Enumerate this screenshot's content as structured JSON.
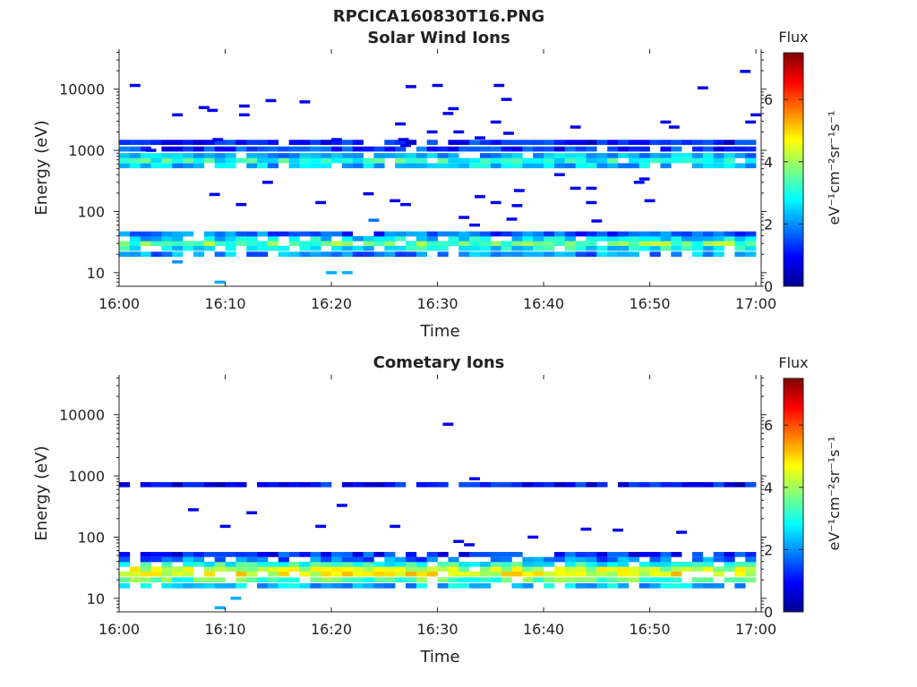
{
  "figure": {
    "filename_title": "RPCICA160830T16.PNG"
  },
  "chart_data": [
    {
      "type": "heatmap",
      "title": "Solar Wind Ions",
      "xlabel": "Time",
      "ylabel": "Energy (eV)",
      "x_ticks": [
        "16:00",
        "16:10",
        "16:20",
        "16:30",
        "16:40",
        "16:50",
        "17:00"
      ],
      "x_range_minutes": [
        0,
        60.5
      ],
      "y_scale": "log",
      "y_ticks": [
        10,
        100,
        1000,
        10000
      ],
      "y_tick_labels": [
        "10",
        "100",
        "1000",
        "10000"
      ],
      "y_range": [
        6,
        45000
      ],
      "colorbar": {
        "title": "Flux",
        "unit": "eV⁻¹cm⁻²sr⁻¹s⁻¹",
        "range": [
          0,
          7.5
        ],
        "ticks": [
          0,
          2,
          4,
          6
        ],
        "colormap": "jet"
      },
      "bands": [
        {
          "t_from": 0,
          "t_to": 60,
          "energy": 20,
          "flux": 2.0
        },
        {
          "t_from": 0,
          "t_to": 60,
          "energy": 25,
          "flux": 2.8
        },
        {
          "t_from": 0,
          "t_to": 60,
          "energy": 30,
          "flux": 3.6
        },
        {
          "t_from": 0,
          "t_to": 60,
          "energy": 36,
          "flux": 2.6
        },
        {
          "t_from": 0,
          "t_to": 60,
          "energy": 43,
          "flux": 1.6
        },
        {
          "t_from": 0,
          "t_to": 60,
          "energy": 560,
          "flux": 2.4
        },
        {
          "t_from": 0,
          "t_to": 60,
          "energy": 680,
          "flux": 3.0
        },
        {
          "t_from": 0,
          "t_to": 60,
          "energy": 820,
          "flux": 2.2
        },
        {
          "t_from": 0,
          "t_to": 60,
          "energy": 1050,
          "flux": 1.3
        },
        {
          "t_from": 0,
          "t_to": 60,
          "energy": 1350,
          "flux": 1.0
        }
      ],
      "points": [
        {
          "t": 1.0,
          "energy": 11500,
          "flux": 0.8
        },
        {
          "t": 2.5,
          "energy": 1000,
          "flux": 0.7
        },
        {
          "t": 5.0,
          "energy": 3800,
          "flux": 0.8
        },
        {
          "t": 7.5,
          "energy": 5000,
          "flux": 0.8
        },
        {
          "t": 8.3,
          "energy": 4500,
          "flux": 0.8
        },
        {
          "t": 8.5,
          "energy": 190,
          "flux": 0.8
        },
        {
          "t": 8.8,
          "energy": 1500,
          "flux": 0.8
        },
        {
          "t": 11.3,
          "energy": 5300,
          "flux": 0.8
        },
        {
          "t": 11.3,
          "energy": 3800,
          "flux": 0.8
        },
        {
          "t": 11.0,
          "energy": 130,
          "flux": 0.8
        },
        {
          "t": 13.8,
          "energy": 6500,
          "flux": 0.8
        },
        {
          "t": 13.5,
          "energy": 300,
          "flux": 0.8
        },
        {
          "t": 17.0,
          "energy": 6200,
          "flux": 0.8
        },
        {
          "t": 18.5,
          "energy": 140,
          "flux": 0.8
        },
        {
          "t": 20.0,
          "energy": 1500,
          "flux": 1.0
        },
        {
          "t": 23.0,
          "energy": 195,
          "flux": 0.8
        },
        {
          "t": 23.5,
          "energy": 72,
          "flux": 1.8
        },
        {
          "t": 25.5,
          "energy": 150,
          "flux": 0.8
        },
        {
          "t": 26.0,
          "energy": 2700,
          "flux": 0.8
        },
        {
          "t": 26.3,
          "energy": 1500,
          "flux": 0.8
        },
        {
          "t": 26.5,
          "energy": 130,
          "flux": 0.8
        },
        {
          "t": 26.5,
          "energy": 1200,
          "flux": 0.8
        },
        {
          "t": 27.0,
          "energy": 11000,
          "flux": 0.8
        },
        {
          "t": 29.0,
          "energy": 2000,
          "flux": 0.8
        },
        {
          "t": 29.5,
          "energy": 11500,
          "flux": 0.8
        },
        {
          "t": 30.5,
          "energy": 4000,
          "flux": 0.8
        },
        {
          "t": 31.0,
          "energy": 4800,
          "flux": 0.8
        },
        {
          "t": 31.5,
          "energy": 2000,
          "flux": 0.8
        },
        {
          "t": 32.0,
          "energy": 80,
          "flux": 0.8
        },
        {
          "t": 33.0,
          "energy": 60,
          "flux": 0.8
        },
        {
          "t": 33.5,
          "energy": 175,
          "flux": 0.8
        },
        {
          "t": 33.5,
          "energy": 1600,
          "flux": 0.8
        },
        {
          "t": 35.0,
          "energy": 140,
          "flux": 0.8
        },
        {
          "t": 35.0,
          "energy": 2900,
          "flux": 0.8
        },
        {
          "t": 35.3,
          "energy": 11500,
          "flux": 0.8
        },
        {
          "t": 36.0,
          "energy": 6800,
          "flux": 0.8
        },
        {
          "t": 36.2,
          "energy": 1900,
          "flux": 0.8
        },
        {
          "t": 36.5,
          "energy": 75,
          "flux": 0.8
        },
        {
          "t": 37.0,
          "energy": 125,
          "flux": 0.8
        },
        {
          "t": 37.2,
          "energy": 220,
          "flux": 0.8
        },
        {
          "t": 41.0,
          "energy": 400,
          "flux": 0.8
        },
        {
          "t": 42.5,
          "energy": 2400,
          "flux": 0.8
        },
        {
          "t": 42.5,
          "energy": 240,
          "flux": 0.8
        },
        {
          "t": 44.0,
          "energy": 240,
          "flux": 0.8
        },
        {
          "t": 44.0,
          "energy": 140,
          "flux": 0.8
        },
        {
          "t": 44.5,
          "energy": 70,
          "flux": 0.8
        },
        {
          "t": 48.5,
          "energy": 300,
          "flux": 0.8
        },
        {
          "t": 49.0,
          "energy": 340,
          "flux": 0.8
        },
        {
          "t": 49.5,
          "energy": 150,
          "flux": 0.8
        },
        {
          "t": 51.0,
          "energy": 2900,
          "flux": 0.8
        },
        {
          "t": 51.8,
          "energy": 2400,
          "flux": 0.8
        },
        {
          "t": 54.5,
          "energy": 10500,
          "flux": 0.8
        },
        {
          "t": 58.5,
          "energy": 19500,
          "flux": 0.8
        },
        {
          "t": 59.0,
          "energy": 2900,
          "flux": 0.8
        },
        {
          "t": 59.5,
          "energy": 3800,
          "flux": 0.8
        },
        {
          "t": 9.0,
          "energy": 7,
          "flux": 2.2
        },
        {
          "t": 19.5,
          "energy": 10,
          "flux": 2.2
        },
        {
          "t": 21.0,
          "energy": 10,
          "flux": 2.2
        },
        {
          "t": 5.0,
          "energy": 15,
          "flux": 2.0
        }
      ]
    },
    {
      "type": "heatmap",
      "title": "Cometary Ions",
      "xlabel": "Time",
      "ylabel": "Energy (eV)",
      "x_ticks": [
        "16:00",
        "16:10",
        "16:20",
        "16:30",
        "16:40",
        "16:50",
        "17:00"
      ],
      "x_range_minutes": [
        0,
        60.5
      ],
      "y_scale": "log",
      "y_ticks": [
        10,
        100,
        1000,
        10000
      ],
      "y_tick_labels": [
        "10",
        "100",
        "1000",
        "10000"
      ],
      "y_range": [
        6,
        45000
      ],
      "colorbar": {
        "title": "Flux",
        "unit": "eV⁻¹cm⁻²sr⁻¹s⁻¹",
        "range": [
          0,
          7.5
        ],
        "ticks": [
          0,
          2,
          4,
          6
        ],
        "colormap": "jet"
      },
      "bands": [
        {
          "t_from": 0,
          "t_to": 60,
          "energy": 16,
          "flux": 2.4
        },
        {
          "t_from": 0,
          "t_to": 60,
          "energy": 20,
          "flux": 3.4
        },
        {
          "t_from": 0,
          "t_to": 60,
          "energy": 25,
          "flux": 4.6
        },
        {
          "t_from": 0,
          "t_to": 60,
          "energy": 30,
          "flux": 4.2
        },
        {
          "t_from": 0,
          "t_to": 60,
          "energy": 36,
          "flux": 3.0
        },
        {
          "t_from": 0,
          "t_to": 60,
          "energy": 43,
          "flux": 1.8
        },
        {
          "t_from": 0,
          "t_to": 60,
          "energy": 52,
          "flux": 1.2
        },
        {
          "t_from": 0,
          "t_to": 60,
          "energy": 720,
          "flux": 0.9
        }
      ],
      "points": [
        {
          "t": 6.5,
          "energy": 280,
          "flux": 0.8
        },
        {
          "t": 9.5,
          "energy": 150,
          "flux": 0.8
        },
        {
          "t": 12.0,
          "energy": 250,
          "flux": 0.8
        },
        {
          "t": 18.5,
          "energy": 150,
          "flux": 0.8
        },
        {
          "t": 20.5,
          "energy": 330,
          "flux": 0.8
        },
        {
          "t": 25.5,
          "energy": 150,
          "flux": 0.8
        },
        {
          "t": 30.5,
          "energy": 7000,
          "flux": 0.8
        },
        {
          "t": 31.5,
          "energy": 85,
          "flux": 0.8
        },
        {
          "t": 32.5,
          "energy": 75,
          "flux": 0.8
        },
        {
          "t": 38.5,
          "energy": 100,
          "flux": 0.8
        },
        {
          "t": 43.5,
          "energy": 135,
          "flux": 0.8
        },
        {
          "t": 46.5,
          "energy": 130,
          "flux": 0.8
        },
        {
          "t": 52.5,
          "energy": 120,
          "flux": 0.8
        },
        {
          "t": 9.0,
          "energy": 7,
          "flux": 2.2
        },
        {
          "t": 10.5,
          "energy": 10,
          "flux": 2.2
        },
        {
          "t": 33.0,
          "energy": 900,
          "flux": 0.9
        }
      ]
    }
  ]
}
